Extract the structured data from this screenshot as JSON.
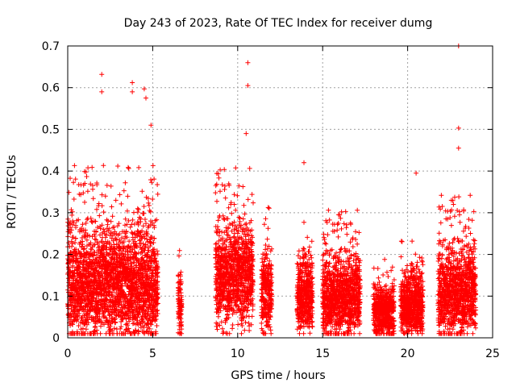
{
  "chart_data": {
    "type": "scatter",
    "title": "Day 243 of 2023, Rate Of TEC Index for receiver dumg",
    "xlabel": "GPS time / hours",
    "ylabel": "ROTI / TECUs",
    "xlim": [
      0,
      25
    ],
    "ylim": [
      0,
      0.7
    ],
    "x_ticks": [
      "0",
      "5",
      "10",
      "15",
      "20",
      "25"
    ],
    "y_ticks": [
      "0",
      "0.1",
      "0.2",
      "0.3",
      "0.4",
      "0.5",
      "0.6",
      "0.7"
    ],
    "grid": true,
    "legend": "none",
    "marker": "+",
    "color": "#ff0000",
    "sample_step_hours": 0.02,
    "segments": [
      {
        "start": 0.0,
        "end": 5.3,
        "base": 0.13,
        "spread": 0.11
      },
      {
        "start": 6.5,
        "end": 6.7,
        "base": 0.08,
        "spread": 0.06
      },
      {
        "start": 8.7,
        "end": 10.9,
        "base": 0.15,
        "spread": 0.1
      },
      {
        "start": 11.4,
        "end": 12.0,
        "base": 0.11,
        "spread": 0.08
      },
      {
        "start": 13.5,
        "end": 14.4,
        "base": 0.1,
        "spread": 0.07
      },
      {
        "start": 15.0,
        "end": 17.2,
        "base": 0.1,
        "spread": 0.08
      },
      {
        "start": 18.0,
        "end": 19.2,
        "base": 0.06,
        "spread": 0.05
      },
      {
        "start": 19.6,
        "end": 20.9,
        "base": 0.08,
        "spread": 0.06
      },
      {
        "start": 21.8,
        "end": 24.0,
        "base": 0.11,
        "spread": 0.09
      }
    ],
    "peaks": [
      {
        "x": 2.0,
        "y": 0.632
      },
      {
        "x": 2.0,
        "y": 0.59
      },
      {
        "x": 3.8,
        "y": 0.612
      },
      {
        "x": 3.8,
        "y": 0.59
      },
      {
        "x": 4.5,
        "y": 0.597
      },
      {
        "x": 4.6,
        "y": 0.575
      },
      {
        "x": 4.9,
        "y": 0.51
      },
      {
        "x": 10.6,
        "y": 0.66
      },
      {
        "x": 10.6,
        "y": 0.605
      },
      {
        "x": 10.5,
        "y": 0.49
      },
      {
        "x": 13.9,
        "y": 0.42
      },
      {
        "x": 20.5,
        "y": 0.395
      },
      {
        "x": 23.0,
        "y": 0.7
      },
      {
        "x": 23.0,
        "y": 0.503
      },
      {
        "x": 23.0,
        "y": 0.455
      }
    ]
  }
}
